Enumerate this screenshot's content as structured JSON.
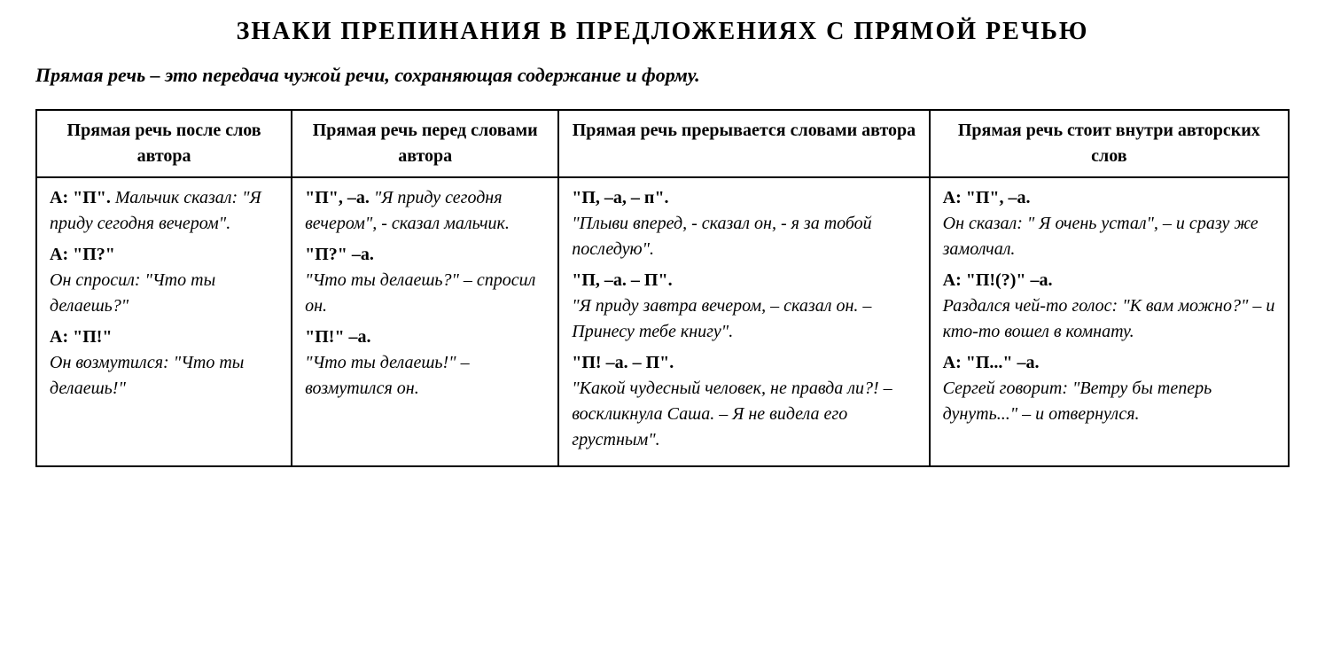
{
  "title": "ЗНАКИ ПРЕПИНАНИЯ В ПРЕДЛОЖЕНИЯХ С ПРЯМОЙ РЕЧЬЮ",
  "definition": "Прямая речь – это передача чужой речи, сохраняющая содержание и форму.",
  "columns": [
    {
      "header": "Прямая речь после слов автора"
    },
    {
      "header": "Прямая речь перед словами автора"
    },
    {
      "header": "Прямая речь прерывается словами автора"
    },
    {
      "header": "Прямая речь стоит внутри авторских слов"
    }
  ],
  "cells": {
    "c0": [
      {
        "formula": "А: \"П\".",
        "example_inline": "Мальчик сказал: \"Я приду сегодня вечером\"."
      },
      {
        "formula": "А: \"П?\"",
        "example": "Он спросил: \"Что ты делаешь?\""
      },
      {
        "formula": "А: \"П!\"",
        "example": "Он возмутился: \"Что ты делаешь!\""
      }
    ],
    "c1": [
      {
        "formula": "\"П\", –а.",
        "example_inline": "\"Я приду сегодня вечером\", - сказал мальчик."
      },
      {
        "formula": "\"П?\" –а.",
        "example": "\"Что ты делаешь?\" – спросил он."
      },
      {
        "formula": "\"П!\" –а.",
        "example": "\"Что ты делаешь!\" – возмутился он."
      }
    ],
    "c2": [
      {
        "formula": "\"П, –а, – п\".",
        "example": "\"Плыви вперед, - сказал он, - я за тобой последую\"."
      },
      {
        "formula": "\"П, –а. – П\".",
        "example": "\"Я приду завтра вечером, – сказал он. – Принесу тебе книгу\"."
      },
      {
        "formula": "\"П! –а. – П\".",
        "example": "\"Какой чудесный человек, не правда ли?! – воскликнула Саша. – Я не видела его грустным\"."
      }
    ],
    "c3": [
      {
        "formula": "А: \"П\", –а.",
        "example": "Он сказал: \" Я очень устал\", – и сразу же замолчал."
      },
      {
        "formula": "А: \"П!(?)\" –а.",
        "example": "Раздался чей-то голос: \"К вам можно?\" – и кто-то вошел в комнату."
      },
      {
        "formula": "А: \"П...\" –а.",
        "example": "Сергей говорит: \"Ветру бы теперь дунуть...\" – и отвернулся."
      }
    ]
  }
}
